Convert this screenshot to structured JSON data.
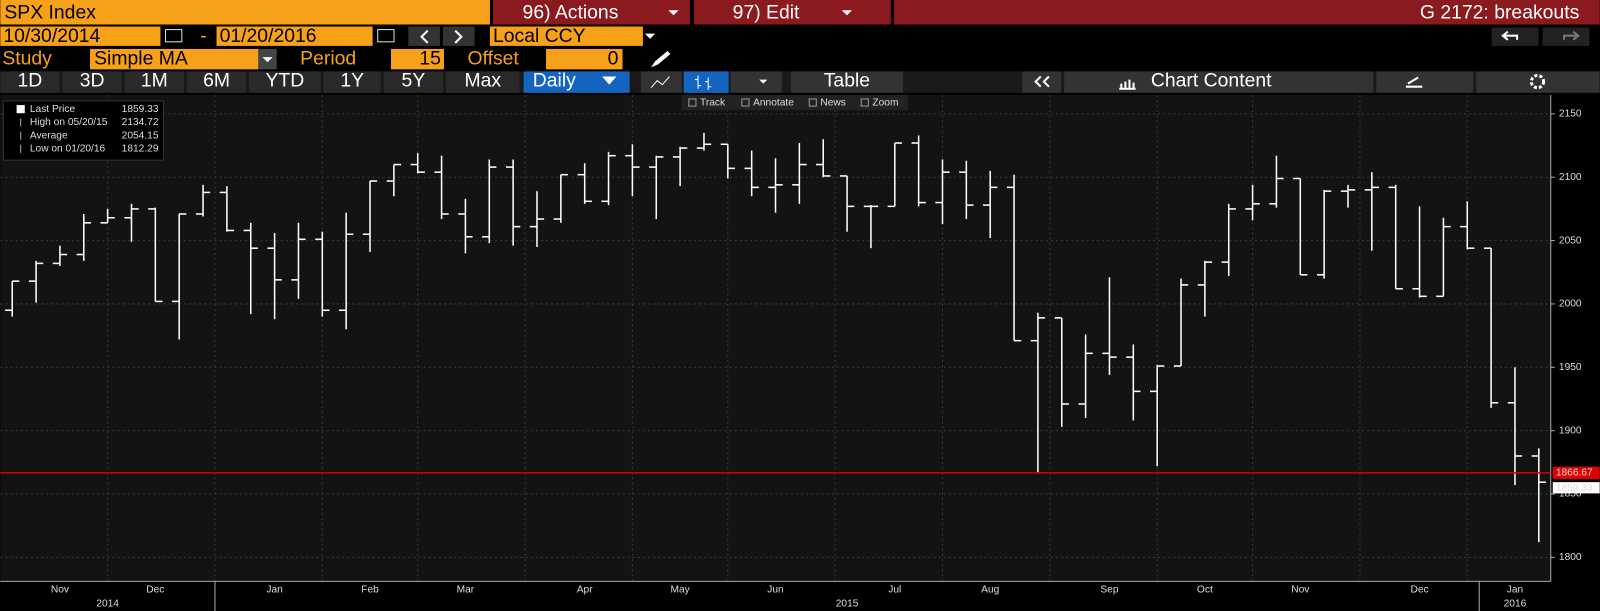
{
  "toolbar": {
    "security": "SPX Index",
    "actions": "96) Actions",
    "edit": "97) Edit",
    "page_title": "G 2172: breakouts",
    "start_date": "10/30/2014",
    "date_sep": "-",
    "end_date": "01/20/2016",
    "currency": "Local CCY",
    "study_label": "Study",
    "study": "Simple MA",
    "period_label": "Period",
    "period": 15,
    "offset_label": "Offset",
    "offset": 0,
    "ranges": [
      "1D",
      "3D",
      "1M",
      "6M",
      "YTD",
      "1Y",
      "5Y",
      "Max"
    ],
    "frequency": "Daily",
    "table": "Table",
    "chart_content": "Chart Content",
    "tools": [
      "Track",
      "Annotate",
      "News",
      "Zoom"
    ]
  },
  "chart_data": {
    "type": "ohlc",
    "color": "#ffffff",
    "legend_box": [
      {
        "label": "Last Price",
        "value": 1859.33
      },
      {
        "label": "High on 05/20/15",
        "value": 2134.72
      },
      {
        "label": "Average",
        "value": 2054.15
      },
      {
        "label": "Low on 01/20/16",
        "value": 1812.29
      }
    ],
    "categories": [
      null,
      null,
      "Nov",
      null,
      null,
      null,
      "Dec",
      null,
      null,
      null,
      null,
      "Jan",
      null,
      null,
      null,
      "Feb",
      null,
      null,
      null,
      "Mar",
      null,
      null,
      null,
      null,
      "Apr",
      null,
      null,
      null,
      "May",
      null,
      null,
      null,
      "Jun",
      null,
      null,
      null,
      null,
      "Jul",
      null,
      null,
      null,
      "Aug",
      null,
      null,
      null,
      null,
      "Sep",
      null,
      null,
      null,
      "Oct",
      null,
      null,
      null,
      "Nov",
      null,
      null,
      null,
      null,
      "Dec",
      null,
      null,
      null,
      "Jan",
      null
    ],
    "year_groups": [
      {
        "label": "2014",
        "count": 9
      },
      {
        "label": "2015",
        "count": 53
      },
      {
        "label": "2016",
        "count": 3
      }
    ],
    "open": [
      1995,
      2018,
      2032,
      2039,
      2064,
      2068,
      2075,
      2002,
      2071,
      2088,
      2058,
      2044,
      2019,
      2051,
      1995,
      2055,
      2097,
      2110,
      2104,
      2071,
      2053,
      2108,
      2061,
      2067,
      2102,
      2081,
      2117,
      2108,
      2116,
      2123,
      2126,
      2107,
      2092,
      2094,
      2110,
      2101,
      2077,
      2077,
      2127,
      2080,
      2104,
      2078,
      2092,
      1971,
      1989,
      1921,
      1961,
      1958,
      1931,
      1951,
      2015,
      2033,
      2075,
      2079,
      2099,
      2023,
      2089,
      2090,
      2092,
      2012,
      2006,
      2061,
      2044,
      1922,
      1880
    ],
    "high": [
      2018,
      2034,
      2046,
      2071,
      2075,
      2079,
      2076,
      2071,
      2094,
      2093,
      2064,
      2056,
      2064,
      2057,
      2072,
      2097,
      2110,
      2119,
      2117,
      2083,
      2114,
      2114,
      2089,
      2102,
      2111,
      2120,
      2126,
      2117,
      2124,
      2135,
      2126,
      2121,
      2115,
      2127,
      2130,
      2101,
      2078,
      2127,
      2133,
      2114,
      2113,
      2105,
      2102,
      1993,
      1989,
      1976,
      2021,
      1968,
      1952,
      2020,
      2034,
      2079,
      2094,
      2117,
      2099,
      2090,
      2094,
      2104,
      2094,
      2077,
      2068,
      2081,
      2044,
      1950,
      1886
    ],
    "low": [
      1990,
      2001,
      2030,
      2034,
      2064,
      2049,
      2002,
      1972,
      2069,
      2057,
      1992,
      1988,
      2004,
      1990,
      1980,
      2041,
      2085,
      2103,
      2067,
      2040,
      2048,
      2046,
      2045,
      2064,
      2079,
      2078,
      2085,
      2067,
      2093,
      2121,
      2099,
      2085,
      2072,
      2079,
      2100,
      2057,
      2044,
      2077,
      2077,
      2063,
      2067,
      2052,
      1971,
      1867,
      1903,
      1910,
      1944,
      1908,
      1872,
      1951,
      1990,
      2022,
      2066,
      2076,
      2023,
      2020,
      2076,
      2042,
      2012,
      2005,
      2006,
      2043,
      1918,
      1857,
      1812
    ],
    "close": [
      2018,
      2032,
      2039,
      2064,
      2068,
      2075,
      2002,
      2071,
      2088,
      2058,
      2044,
      2019,
      2051,
      1995,
      2055,
      2097,
      2110,
      2104,
      2071,
      2053,
      2108,
      2061,
      2067,
      2102,
      2081,
      2117,
      2108,
      2116,
      2123,
      2126,
      2107,
      2092,
      2094,
      2110,
      2101,
      2077,
      2077,
      2127,
      2080,
      2104,
      2078,
      2092,
      1971,
      1989,
      1921,
      1961,
      1958,
      1931,
      1951,
      2015,
      2033,
      2075,
      2079,
      2099,
      2023,
      2089,
      2090,
      2092,
      2012,
      2006,
      2061,
      2044,
      1922,
      1880,
      1859.33
    ],
    "reference_line": {
      "value": 1866.67,
      "color": "#e00000"
    },
    "ylim": [
      1781,
      2165
    ],
    "yticks": [
      1800,
      1850,
      1900,
      1950,
      2000,
      2050,
      2100,
      2150
    ],
    "grid": true
  }
}
